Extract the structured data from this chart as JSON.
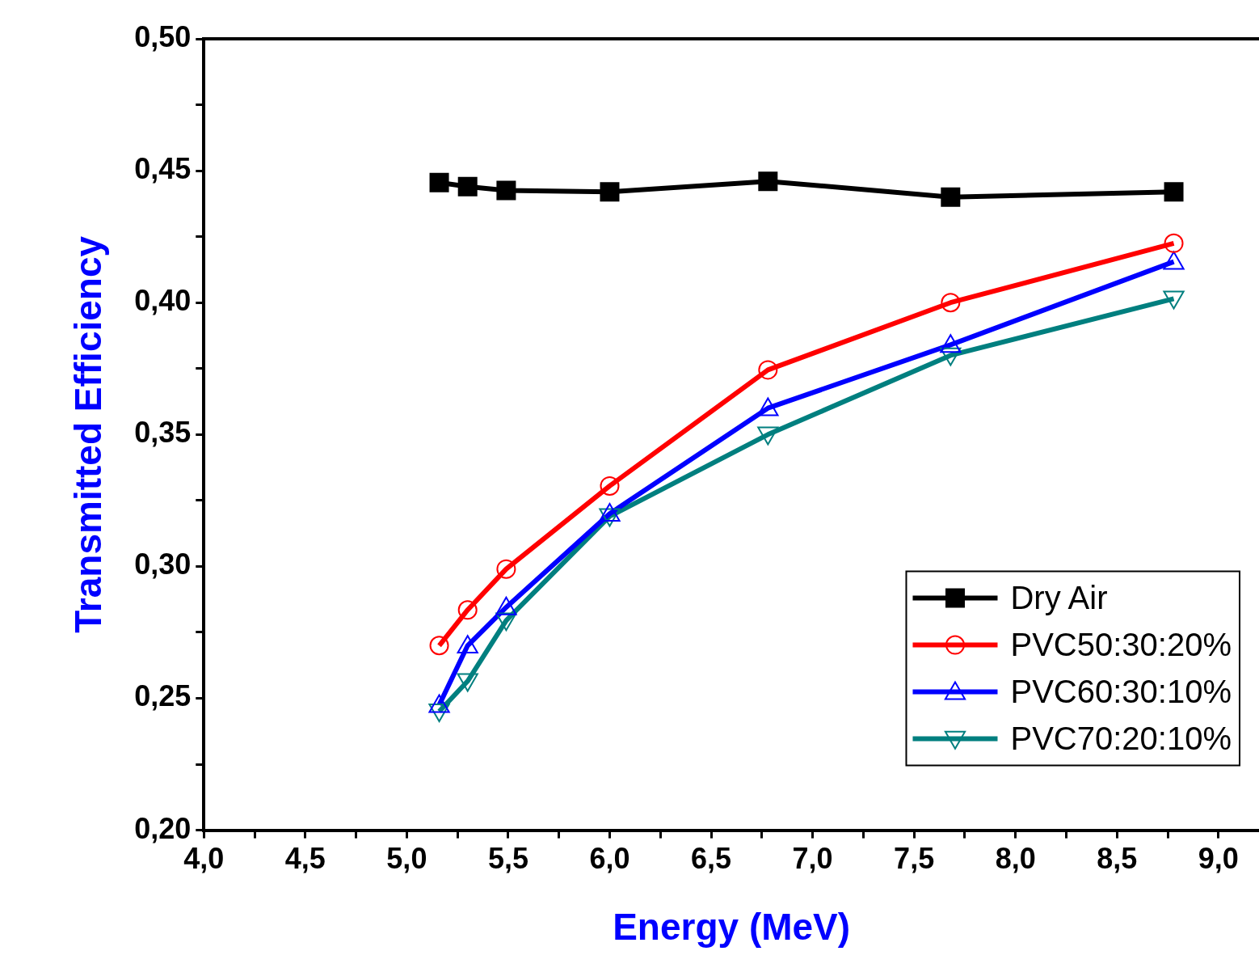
{
  "chart_data": {
    "type": "line",
    "xlabel": "Energy (MeV)",
    "ylabel": "Transmitted Efficiency",
    "x": [
      5.16,
      5.3,
      5.49,
      6.0,
      6.78,
      7.68,
      8.78
    ],
    "series": [
      {
        "name": "Dry Air",
        "color": "#000000",
        "marker": "square",
        "values": [
          0.4455,
          0.444,
          0.4425,
          0.442,
          0.446,
          0.44,
          0.442
        ]
      },
      {
        "name": "PVC50:30:20%",
        "color": "#ff0000",
        "marker": "circle",
        "values": [
          0.27,
          0.2835,
          0.299,
          0.3305,
          0.3745,
          0.4,
          0.4225
        ]
      },
      {
        "name": "PVC60:30:10%",
        "color": "#0000ff",
        "marker": "triangle",
        "values": [
          0.2475,
          0.27,
          0.2845,
          0.32,
          0.36,
          0.384,
          0.4155
        ]
      },
      {
        "name": "PVC70:20:10%",
        "color": "#007f7f",
        "marker": "triangle-down",
        "values": [
          0.245,
          0.2565,
          0.2795,
          0.319,
          0.35,
          0.38,
          0.4015
        ]
      }
    ],
    "xlim": [
      4.0,
      9.2
    ],
    "xticks": [
      {
        "value": 4.0,
        "label": "4,0"
      },
      {
        "value": 4.25,
        "label": null
      },
      {
        "value": 4.5,
        "label": "4,5"
      },
      {
        "value": 4.75,
        "label": null
      },
      {
        "value": 5.0,
        "label": "5,0"
      },
      {
        "value": 5.25,
        "label": null
      },
      {
        "value": 5.5,
        "label": "5,5"
      },
      {
        "value": 5.75,
        "label": null
      },
      {
        "value": 6.0,
        "label": "6,0"
      },
      {
        "value": 6.25,
        "label": null
      },
      {
        "value": 6.5,
        "label": "6,5"
      },
      {
        "value": 6.75,
        "label": null
      },
      {
        "value": 7.0,
        "label": "7,0"
      },
      {
        "value": 7.25,
        "label": null
      },
      {
        "value": 7.5,
        "label": "7,5"
      },
      {
        "value": 7.75,
        "label": null
      },
      {
        "value": 8.0,
        "label": "8,0"
      },
      {
        "value": 8.25,
        "label": null
      },
      {
        "value": 8.5,
        "label": "8,5"
      },
      {
        "value": 8.75,
        "label": null
      },
      {
        "value": 9.0,
        "label": "9,0"
      }
    ],
    "ylim": [
      0.2,
      0.5
    ],
    "yticks": [
      {
        "value": 0.2,
        "label": "0,20"
      },
      {
        "value": 0.225,
        "label": null
      },
      {
        "value": 0.25,
        "label": "0,25"
      },
      {
        "value": 0.275,
        "label": null
      },
      {
        "value": 0.3,
        "label": "0,30"
      },
      {
        "value": 0.325,
        "label": null
      },
      {
        "value": 0.35,
        "label": "0,35"
      },
      {
        "value": 0.375,
        "label": null
      },
      {
        "value": 0.4,
        "label": "0,40"
      },
      {
        "value": 0.425,
        "label": null
      },
      {
        "value": 0.45,
        "label": "0,45"
      },
      {
        "value": 0.475,
        "label": null
      },
      {
        "value": 0.5,
        "label": "0,50"
      }
    ],
    "grid": false,
    "legend": "bottom right",
    "line_style": "solid"
  }
}
